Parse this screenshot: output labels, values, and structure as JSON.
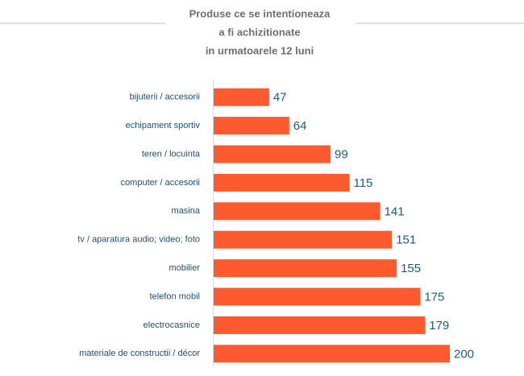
{
  "chart_data": {
    "type": "bar",
    "orientation": "horizontal",
    "title": [
      "Produse ce se intentioneaza",
      "a fi achizitionate",
      "in urmatoarele 12 luni"
    ],
    "categories": [
      "bijuterii / accesorii",
      "echipament sportiv",
      "teren / locuinta",
      "computer / accesorii",
      "masina",
      "tv / aparatura audio; video; foto",
      "mobilier",
      "telefon mobil",
      "electrocasnice",
      "materiale de constructii / décor"
    ],
    "values": [
      47,
      64,
      99,
      115,
      141,
      151,
      155,
      175,
      179,
      200
    ],
    "color": "#fe5a2f"
  }
}
